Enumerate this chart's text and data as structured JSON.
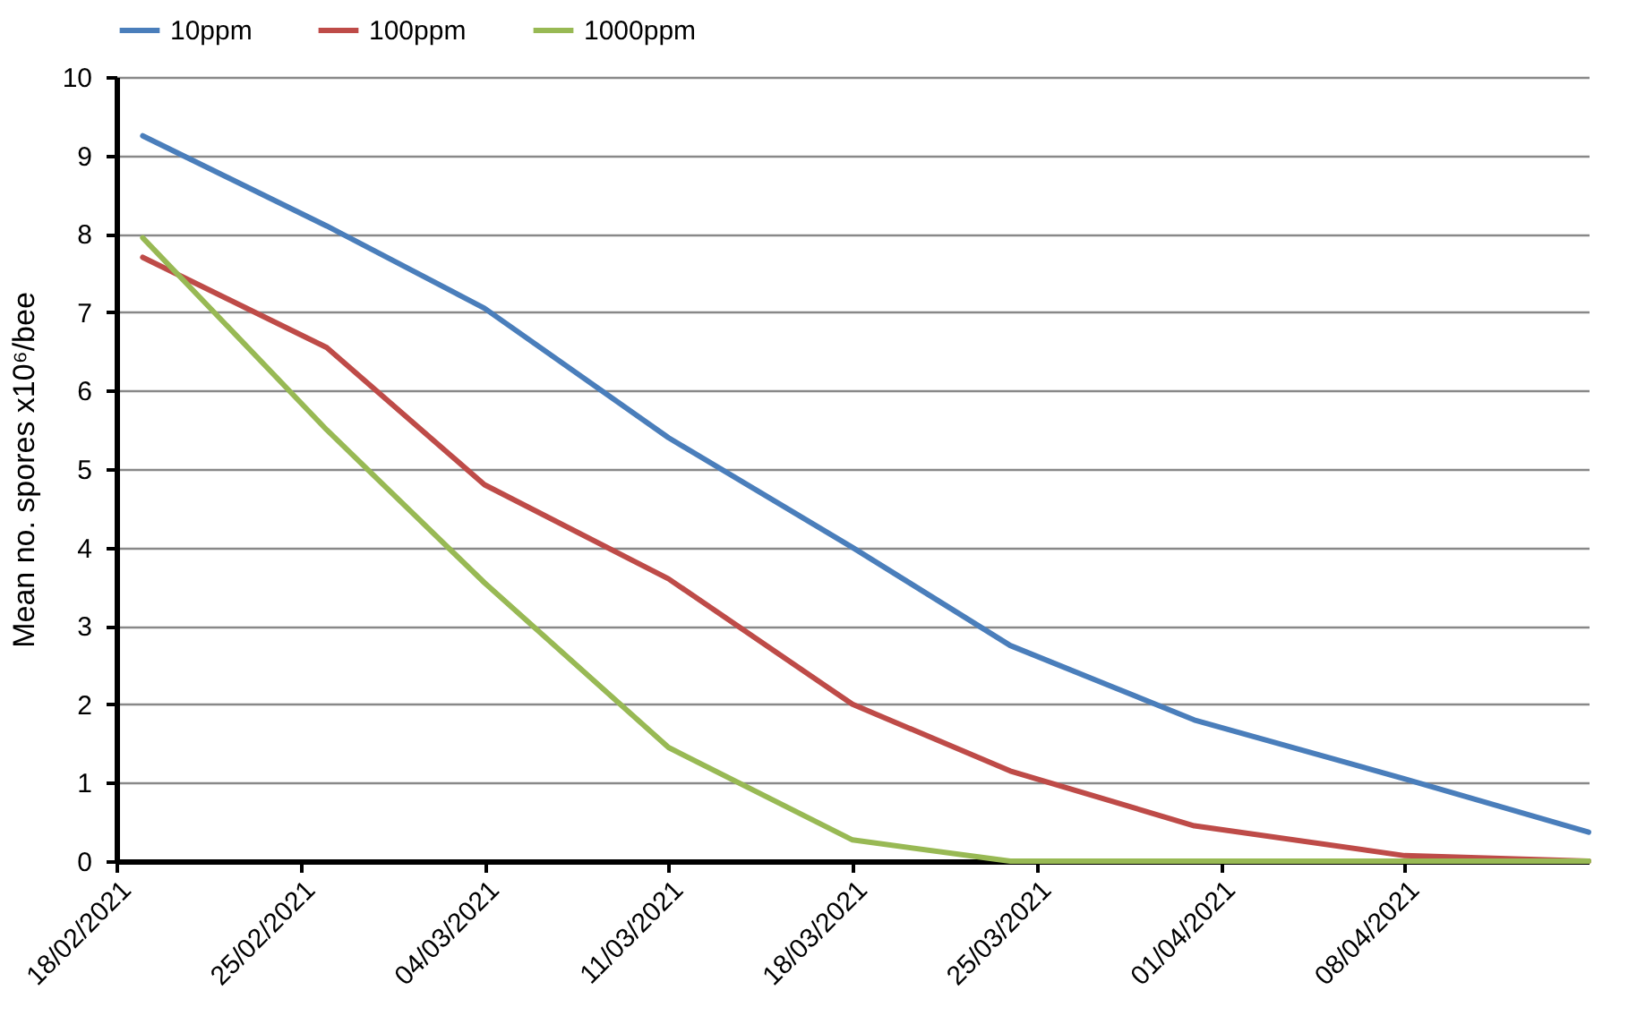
{
  "chart_data": {
    "type": "line",
    "ylabel": "Mean no. spores x10⁶/bee",
    "x": [
      "2021-02-19",
      "2021-02-26",
      "2021-03-04",
      "2021-03-11",
      "2021-03-18",
      "2021-03-24",
      "2021-03-31",
      "2021-04-08",
      "2021-04-15"
    ],
    "series": [
      {
        "name": "10ppm",
        "color": "#4a7ebb",
        "values": [
          9.25,
          8.1,
          7.05,
          5.4,
          4.0,
          2.75,
          1.8,
          1.05,
          0.37
        ]
      },
      {
        "name": "100ppm",
        "color": "#be4b48",
        "values": [
          7.7,
          6.55,
          4.8,
          3.6,
          2.0,
          1.15,
          0.45,
          0.07,
          0
        ]
      },
      {
        "name": "1000ppm",
        "color": "#98b954",
        "values": [
          7.95,
          5.5,
          3.55,
          1.45,
          0.27,
          0,
          0,
          0,
          0
        ]
      }
    ],
    "xlim": [
      "2021-02-18",
      "2021-04-15"
    ],
    "xticks": [
      {
        "value": "2021-02-18",
        "label": "18/02/2021"
      },
      {
        "value": "2021-02-25",
        "label": "25/02/2021"
      },
      {
        "value": "2021-03-04",
        "label": "04/03/2021"
      },
      {
        "value": "2021-03-11",
        "label": "11/03/2021"
      },
      {
        "value": "2021-03-18",
        "label": "18/03/2021"
      },
      {
        "value": "2021-03-25",
        "label": "25/03/2021"
      },
      {
        "value": "2021-04-01",
        "label": "01/04/2021"
      },
      {
        "value": "2021-04-08",
        "label": "08/04/2021"
      }
    ],
    "ylim": [
      0,
      10
    ],
    "yticks": [
      0,
      1,
      2,
      3,
      4,
      5,
      6,
      7,
      8,
      9,
      10
    ],
    "grid": "y",
    "legend": "top",
    "marker": "none",
    "line_style": "solid"
  }
}
